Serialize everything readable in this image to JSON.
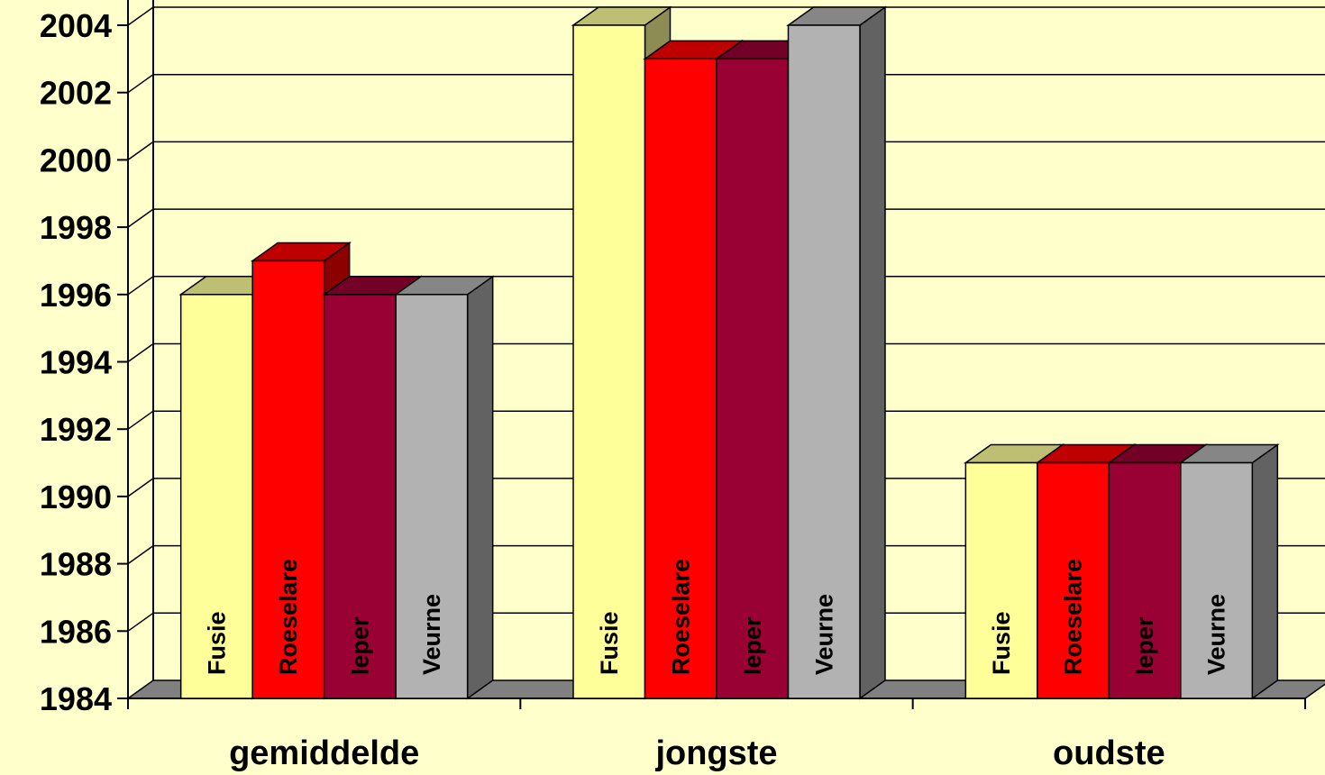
{
  "chart_data": {
    "type": "bar",
    "categories": [
      "gemiddelde",
      "jongste",
      "oudste"
    ],
    "series": [
      {
        "name": "Fusie",
        "values": [
          1996,
          2004,
          1991
        ]
      },
      {
        "name": "Roeselare",
        "values": [
          1997,
          2003,
          1991
        ]
      },
      {
        "name": "Ieper",
        "values": [
          1996,
          2003,
          1991
        ]
      },
      {
        "name": "Veurne",
        "values": [
          1996,
          2004,
          1991
        ]
      }
    ],
    "yticks": [
      "1984",
      "1986",
      "1988",
      "1990",
      "1992",
      "1994",
      "1996",
      "1998",
      "2000",
      "2002",
      "2004"
    ],
    "ylim": [
      1984,
      2004
    ],
    "grid": true,
    "legend": "none",
    "style": "3d-column",
    "colors": {
      "background": "#ffffcc",
      "Fusie": "#ffff99",
      "Roeselare": "#ff0000",
      "Ieper": "#990033",
      "Veurne": "#b2b2b2",
      "floor": "#808080"
    }
  }
}
